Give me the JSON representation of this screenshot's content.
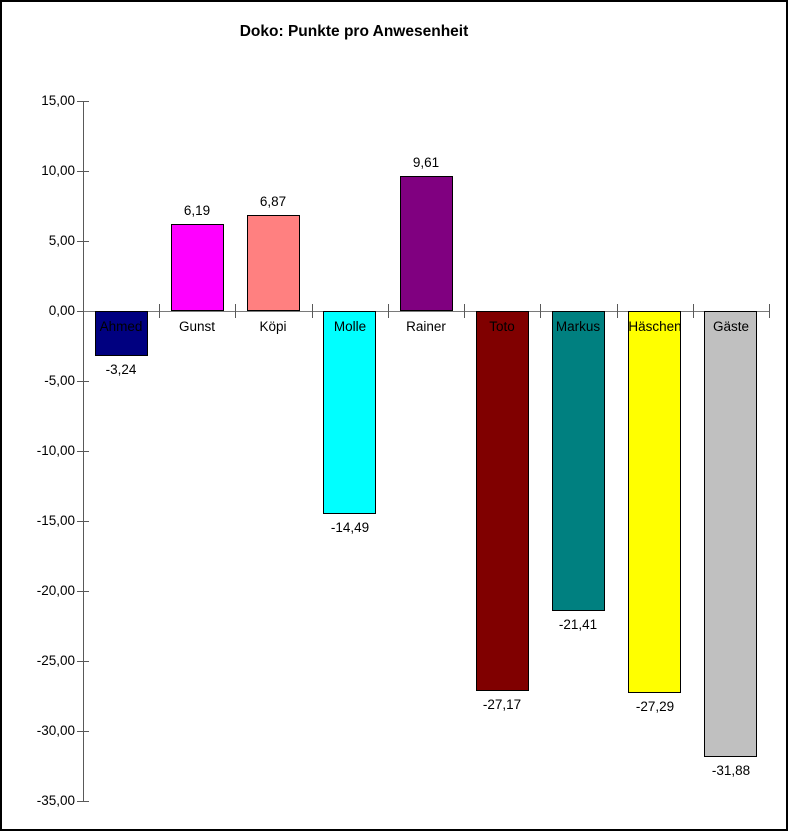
{
  "chart_data": {
    "type": "bar",
    "title": "Doko: Punkte pro Anwesenheit",
    "categories": [
      "Ahmed",
      "Gunst",
      "Köpi",
      "Molle",
      "Rainer",
      "Toto",
      "Markus",
      "Häschen",
      "Gäste"
    ],
    "values": [
      -3.24,
      6.19,
      6.87,
      -14.49,
      9.61,
      -27.17,
      -21.41,
      -27.29,
      -31.88
    ],
    "value_labels": [
      "-3,24",
      "6,19",
      "6,87",
      "-14,49",
      "9,61",
      "-27,17",
      "-21,41",
      "-27,29",
      "-31,88"
    ],
    "bar_colors": [
      "#000080",
      "#ff00ff",
      "#ff8080",
      "#00ffff",
      "#800080",
      "#800000",
      "#008080",
      "#ffff00",
      "#c0c0c0"
    ],
    "bar_border_color": "#000000",
    "xlabel": "",
    "ylabel": "",
    "ylim": [
      -35,
      15
    ],
    "y_tick_step": 5,
    "y_tick_labels": [
      "15,00",
      "10,00",
      "5,00",
      "0,00",
      "-5,00",
      "-10,00",
      "-15,00",
      "-20,00",
      "-25,00",
      "-30,00",
      "-35,00"
    ],
    "y_tick_values": [
      15,
      10,
      5,
      0,
      -5,
      -10,
      -15,
      -20,
      -25,
      -30,
      -35
    ],
    "grid": false,
    "legend": "none",
    "decimal_separator": ",",
    "axis_color": "#595959",
    "frame_border_color": "#000000",
    "background_color": "#ffffff"
  }
}
